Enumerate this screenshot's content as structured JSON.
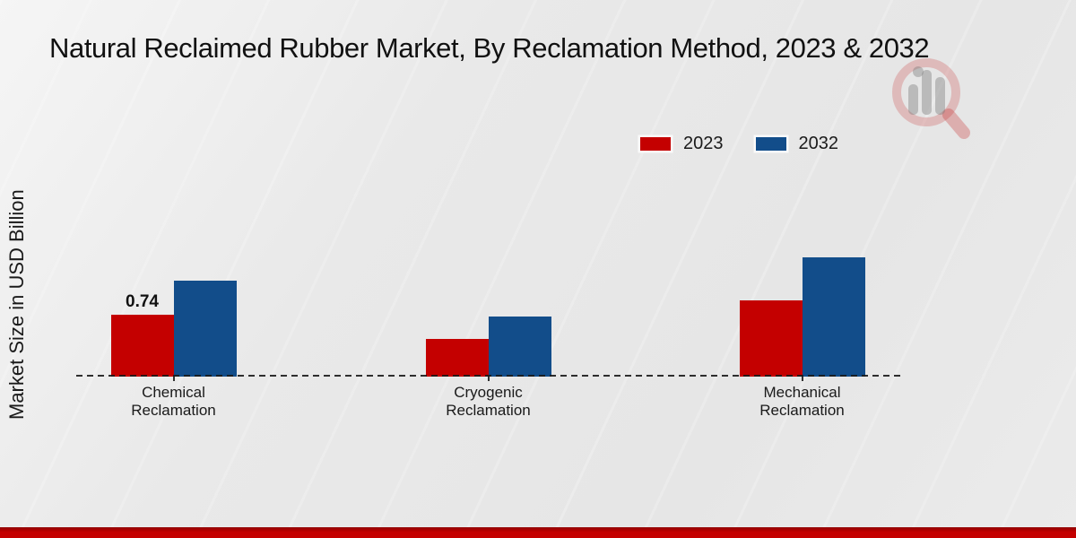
{
  "title": "Natural Reclaimed Rubber Market, By Reclamation Method, 2023 & 2032",
  "y_axis_label": "Market Size in USD Billion",
  "legend": {
    "items": [
      {
        "label": "2023",
        "color": "#c40000"
      },
      {
        "label": "2032",
        "color": "#124d8a"
      }
    ]
  },
  "colors": {
    "series_2023": "#c40000",
    "series_2032": "#124d8a",
    "bottom_strip": "#c40000",
    "text": "#1a1a1a"
  },
  "watermark_icon": "magnifier-bar-chart-logo",
  "chart_data": {
    "type": "bar",
    "title": "Natural Reclaimed Rubber Market, By Reclamation Method, 2023 & 2032",
    "ylabel": "Market Size in USD Billion",
    "xlabel": "",
    "categories": [
      "Chemical Reclamation",
      "Cryogenic Reclamation",
      "Mechanical Reclamation"
    ],
    "series": [
      {
        "name": "2023",
        "color": "#c40000",
        "values": [
          0.74,
          0.45,
          0.91
        ]
      },
      {
        "name": "2032",
        "color": "#124d8a",
        "values": [
          1.15,
          0.72,
          1.43
        ]
      }
    ],
    "shown_value_labels": [
      {
        "series": "2023",
        "category_index": 0,
        "text": "0.74"
      }
    ],
    "ylim": [
      0,
      1.6
    ],
    "grid": false,
    "baseline_style": "dashed",
    "legend_position": "top-right"
  }
}
